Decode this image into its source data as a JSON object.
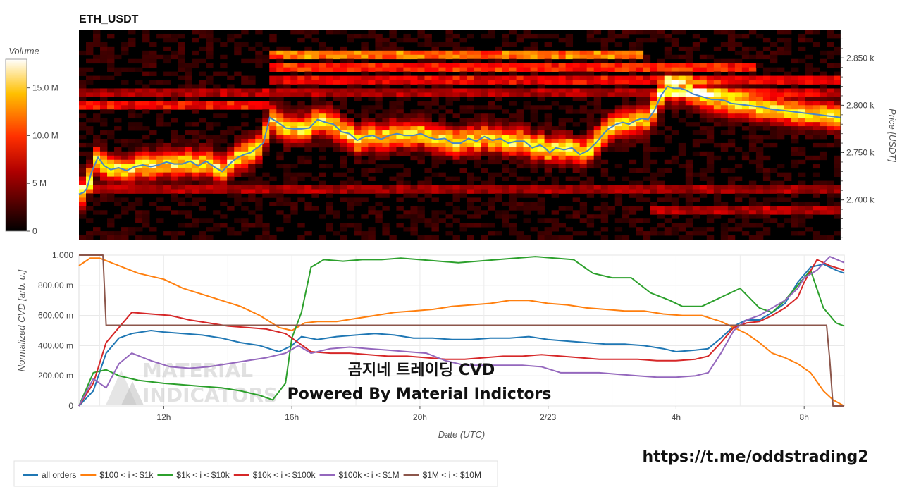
{
  "title": "ETH_USDT",
  "colors": {
    "all_orders": "#1f77b4",
    "s100_1k": "#ff7f0e",
    "s1k_10k": "#2ca02c",
    "s10k_100k": "#d62728",
    "s100k_1m": "#9467bd",
    "s1m_10m": "#8c564b",
    "price_line": "#4a86c8"
  },
  "overlay": {
    "korean_title": "곰지네 트레이딩 CVD",
    "powered_by": "Powered By Material Indictors",
    "url": "https://t.me/oddstrading2",
    "watermark_line1": "MATERIAL",
    "watermark_line2": "INDICATORS"
  },
  "chart_data": [
    {
      "type": "heatmap",
      "title": "ETH_USDT",
      "colorbar": {
        "title": "Volume",
        "ticks": [
          "0",
          "5 M",
          "10.0 M",
          "15.0 M"
        ],
        "tick_values": [
          0,
          5,
          10,
          15
        ],
        "range": [
          0,
          18
        ],
        "colormap": "hot"
      },
      "yaxis": {
        "label": "Price [USDT]",
        "ticks": [
          "2.700 k",
          "2.750 k",
          "2.800 k",
          "2.850 k"
        ],
        "tick_values": [
          2700,
          2750,
          2800,
          2850
        ],
        "range": [
          2658,
          2880
        ],
        "side": "right"
      },
      "price_series": {
        "x_hours": [
          0,
          0.3,
          0.5,
          0.8,
          1.2,
          1.6,
          2.0,
          2.5,
          3.0,
          3.5,
          4.0,
          4.5,
          5.0,
          5.5,
          6.0,
          6.5,
          7.0,
          7.5,
          8.0,
          8.5,
          9.0,
          9.6,
          10.0,
          10.4,
          10.8,
          11.2,
          11.6,
          12.0,
          12.5,
          13.0,
          13.5,
          14.0,
          14.5,
          15.0,
          15.5,
          16.0,
          16.5,
          17.0,
          17.5,
          18.0,
          18.5,
          19.0,
          19.5,
          20.0,
          20.5,
          21.0,
          21.5,
          22.0,
          22.5,
          23.0,
          23.5,
          24.0,
          24.5,
          25.0,
          25.5,
          26.0,
          26.5,
          27.0,
          27.5,
          28.0,
          28.5,
          29.0,
          29.3,
          29.6,
          30.0,
          30.5,
          31.0,
          31.5,
          32.0,
          32.5,
          33.0,
          33.3,
          33.8,
          34.2,
          34.6,
          35.0,
          35.4,
          35.8,
          36.2,
          36.6,
          37.0,
          37.4,
          37.8,
          38.2,
          38.6,
          39.0,
          39.4,
          39.8,
          40.2,
          40.6,
          41.0,
          41.5,
          42.0,
          42.5,
          43.0,
          43.5,
          44.0,
          44.5,
          45.0,
          45.5,
          46.0,
          46.5,
          47.0,
          47.5,
          47.9
        ],
        "y": [
          2706,
          2708,
          2712,
          2730,
          2745,
          2736,
          2732,
          2734,
          2731,
          2735,
          2737,
          2735,
          2737,
          2740,
          2738,
          2738,
          2741,
          2736,
          2741,
          2735,
          2730,
          2740,
          2745,
          2748,
          2750,
          2755,
          2760,
          2787,
          2782,
          2776,
          2775,
          2775,
          2776,
          2785,
          2782,
          2780,
          2772,
          2770,
          2763,
          2767,
          2768,
          2764,
          2768,
          2770,
          2768,
          2768,
          2770,
          2766,
          2764,
          2765,
          2760,
          2760,
          2765,
          2762,
          2767,
          2763,
          2765,
          2760,
          2762,
          2762,
          2755,
          2758,
          2755,
          2750,
          2755,
          2753,
          2755,
          2748,
          2752,
          2760,
          2770,
          2775,
          2780,
          2782,
          2780,
          2784,
          2786,
          2785,
          2795,
          2810,
          2820,
          2818,
          2818,
          2816,
          2812,
          2810,
          2808,
          2806,
          2806,
          2805,
          2802,
          2801,
          2800,
          2799,
          2798,
          2796,
          2795,
          2794,
          2793,
          2792,
          2791,
          2790,
          2789,
          2788,
          2787
        ],
        "note_color": "price_line"
      }
    },
    {
      "type": "line",
      "xlabel": "Date (UTC)",
      "ylabel": "Normalized CVD [arb. u.]",
      "x_ticks": [
        "12h",
        "16h",
        "20h",
        "2/23",
        "4h",
        "8h"
      ],
      "x_tick_hours": [
        12,
        16,
        20,
        24,
        28,
        32
      ],
      "x_range_hours": [
        9.35,
        33.25
      ],
      "y_ticks": [
        "0",
        "200.00 m",
        "400.00 m",
        "600.00 m",
        "800.00 m",
        "1.000"
      ],
      "y_tick_values": [
        0,
        0.2,
        0.4,
        0.6,
        0.8,
        1.0
      ],
      "ylim": [
        0,
        1.0
      ],
      "legend_position": "bottom-left",
      "series": [
        {
          "name": "all orders",
          "color_key": "all_orders",
          "x": [
            9.35,
            9.8,
            10.2,
            10.6,
            11.0,
            11.6,
            12.0,
            12.6,
            13.2,
            13.8,
            14.4,
            15.0,
            15.6,
            16.0,
            16.3,
            16.8,
            17.4,
            18.0,
            18.6,
            19.2,
            19.8,
            20.4,
            21.0,
            21.6,
            22.2,
            22.8,
            23.4,
            24.0,
            24.6,
            25.2,
            25.8,
            26.4,
            27.0,
            27.6,
            28.0,
            28.6,
            29.0,
            29.4,
            29.8,
            30.2,
            30.6,
            31.0,
            31.4,
            31.8,
            32.2,
            32.6,
            33.0,
            33.25
          ],
          "y": [
            0.0,
            0.1,
            0.35,
            0.45,
            0.48,
            0.5,
            0.49,
            0.48,
            0.47,
            0.45,
            0.42,
            0.4,
            0.36,
            0.4,
            0.46,
            0.44,
            0.46,
            0.47,
            0.48,
            0.47,
            0.45,
            0.45,
            0.44,
            0.44,
            0.45,
            0.45,
            0.46,
            0.44,
            0.43,
            0.42,
            0.41,
            0.41,
            0.4,
            0.38,
            0.36,
            0.37,
            0.38,
            0.45,
            0.53,
            0.57,
            0.57,
            0.62,
            0.68,
            0.82,
            0.92,
            0.94,
            0.9,
            0.88
          ]
        },
        {
          "name": "$100 < i < $1k",
          "color_key": "s100_1k",
          "x": [
            9.35,
            9.7,
            10.0,
            10.6,
            11.2,
            12.0,
            12.6,
            13.2,
            13.8,
            14.4,
            15.0,
            15.6,
            16.0,
            16.4,
            16.8,
            17.4,
            18.0,
            18.6,
            19.2,
            19.8,
            20.4,
            21.0,
            21.6,
            22.2,
            22.8,
            23.4,
            24.0,
            24.6,
            25.2,
            25.8,
            26.4,
            27.0,
            27.6,
            28.2,
            28.8,
            29.4,
            29.8,
            30.2,
            30.6,
            31.0,
            31.4,
            31.8,
            32.2,
            32.6,
            32.9,
            33.25
          ],
          "y": [
            0.93,
            0.98,
            0.98,
            0.93,
            0.88,
            0.84,
            0.78,
            0.74,
            0.7,
            0.66,
            0.6,
            0.52,
            0.5,
            0.55,
            0.56,
            0.56,
            0.58,
            0.6,
            0.62,
            0.63,
            0.64,
            0.66,
            0.67,
            0.68,
            0.7,
            0.7,
            0.68,
            0.67,
            0.65,
            0.64,
            0.63,
            0.63,
            0.61,
            0.6,
            0.6,
            0.56,
            0.52,
            0.48,
            0.42,
            0.35,
            0.32,
            0.28,
            0.22,
            0.1,
            0.04,
            0.0
          ]
        },
        {
          "name": "$1k < i < $10k",
          "color_key": "s1k_10k",
          "x": [
            9.35,
            9.8,
            10.2,
            10.6,
            11.2,
            12.0,
            12.6,
            13.2,
            13.8,
            14.4,
            15.0,
            15.4,
            15.8,
            16.0,
            16.3,
            16.6,
            17.0,
            17.6,
            18.2,
            18.8,
            19.4,
            20.0,
            20.6,
            21.2,
            21.8,
            22.4,
            23.0,
            23.6,
            24.2,
            24.8,
            25.4,
            26.0,
            26.6,
            27.2,
            27.8,
            28.2,
            28.8,
            29.4,
            30.0,
            30.6,
            31.0,
            31.4,
            31.8,
            32.2,
            32.6,
            33.0,
            33.25
          ],
          "y": [
            0.0,
            0.22,
            0.24,
            0.2,
            0.17,
            0.15,
            0.14,
            0.13,
            0.12,
            0.1,
            0.07,
            0.04,
            0.15,
            0.45,
            0.62,
            0.92,
            0.97,
            0.96,
            0.97,
            0.97,
            0.98,
            0.97,
            0.96,
            0.95,
            0.96,
            0.97,
            0.98,
            0.99,
            0.98,
            0.97,
            0.88,
            0.85,
            0.85,
            0.75,
            0.7,
            0.66,
            0.66,
            0.72,
            0.78,
            0.65,
            0.62,
            0.7,
            0.8,
            0.9,
            0.65,
            0.55,
            0.53
          ]
        },
        {
          "name": "$10k < i < $100k",
          "color_key": "s10k_100k",
          "x": [
            9.35,
            9.8,
            10.2,
            10.6,
            11.0,
            11.6,
            12.2,
            12.8,
            13.4,
            14.0,
            14.6,
            15.2,
            15.8,
            16.2,
            16.6,
            17.2,
            17.8,
            18.4,
            19.0,
            19.6,
            20.2,
            20.8,
            21.4,
            22.0,
            22.6,
            23.2,
            23.8,
            24.4,
            25.0,
            25.6,
            26.2,
            26.8,
            27.4,
            28.0,
            28.6,
            29.0,
            29.4,
            29.8,
            30.2,
            30.6,
            31.0,
            31.4,
            31.8,
            32.0,
            32.4,
            32.8,
            33.25
          ],
          "y": [
            0.0,
            0.15,
            0.42,
            0.52,
            0.62,
            0.61,
            0.6,
            0.57,
            0.55,
            0.53,
            0.52,
            0.51,
            0.48,
            0.42,
            0.36,
            0.35,
            0.35,
            0.34,
            0.33,
            0.33,
            0.32,
            0.31,
            0.31,
            0.32,
            0.33,
            0.33,
            0.34,
            0.33,
            0.32,
            0.31,
            0.31,
            0.31,
            0.3,
            0.3,
            0.31,
            0.33,
            0.42,
            0.52,
            0.55,
            0.56,
            0.6,
            0.65,
            0.72,
            0.82,
            0.97,
            0.93,
            0.9
          ]
        },
        {
          "name": "$100k < i < $1M",
          "color_key": "s100k_1m",
          "x": [
            9.35,
            9.8,
            10.2,
            10.6,
            11.0,
            11.6,
            12.2,
            12.8,
            13.4,
            14.0,
            14.6,
            15.2,
            15.8,
            16.2,
            16.6,
            17.2,
            17.8,
            18.4,
            19.0,
            19.6,
            20.2,
            20.8,
            21.4,
            22.0,
            22.6,
            23.2,
            23.8,
            24.4,
            25.0,
            25.6,
            26.2,
            26.8,
            27.4,
            28.0,
            28.6,
            29.0,
            29.4,
            29.8,
            30.2,
            30.6,
            31.0,
            31.4,
            31.8,
            32.0,
            32.4,
            32.8,
            33.25
          ],
          "y": [
            0.0,
            0.18,
            0.12,
            0.28,
            0.35,
            0.3,
            0.26,
            0.25,
            0.26,
            0.28,
            0.3,
            0.32,
            0.35,
            0.4,
            0.35,
            0.38,
            0.39,
            0.38,
            0.37,
            0.36,
            0.35,
            0.3,
            0.27,
            0.27,
            0.27,
            0.27,
            0.26,
            0.22,
            0.22,
            0.22,
            0.21,
            0.2,
            0.19,
            0.19,
            0.2,
            0.22,
            0.35,
            0.5,
            0.57,
            0.6,
            0.65,
            0.7,
            0.78,
            0.85,
            0.9,
            0.99,
            0.95
          ]
        },
        {
          "name": "$1M < i < $10M",
          "color_key": "s1m_10m",
          "x": [
            9.35,
            9.9,
            10.1,
            10.2,
            12.0,
            16.0,
            20.0,
            24.0,
            28.0,
            32.0,
            32.7,
            32.8,
            32.9,
            33.25
          ],
          "y": [
            1.0,
            1.0,
            1.0,
            0.535,
            0.535,
            0.535,
            0.535,
            0.535,
            0.535,
            0.535,
            0.535,
            0.3,
            0.0,
            0.0
          ]
        }
      ]
    }
  ]
}
